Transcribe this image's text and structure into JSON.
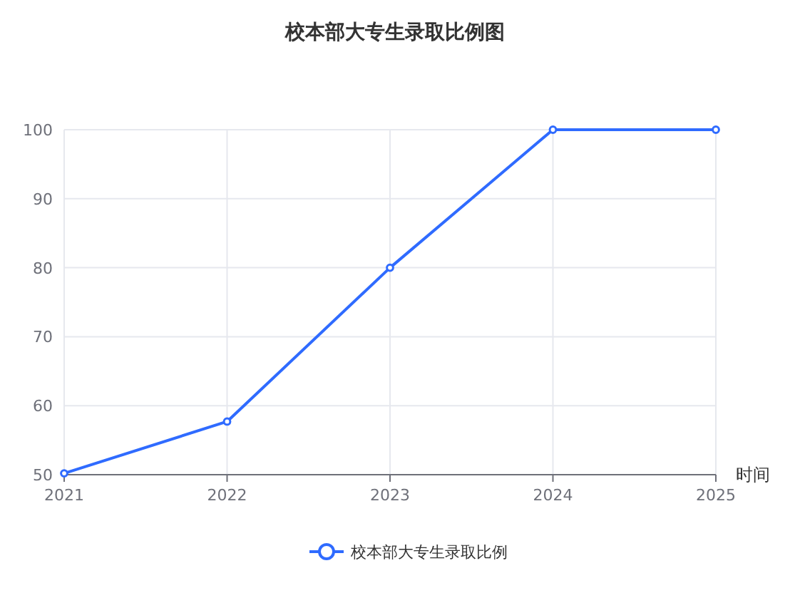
{
  "chart_data": {
    "type": "line",
    "title": "校本部大专生录取比例图",
    "xlabel": "时间",
    "categories": [
      "2021",
      "2022",
      "2023",
      "2024",
      "2025"
    ],
    "series": [
      {
        "name": "校本部大专生录取比例",
        "color": "#2f6bff",
        "values": [
          50.2,
          57.7,
          80,
          100,
          100
        ]
      }
    ],
    "ylim": [
      50,
      100
    ],
    "yticks": [
      50,
      60,
      70,
      80,
      90,
      100
    ],
    "grid": true,
    "legend": "bottom",
    "marker": "circle"
  }
}
